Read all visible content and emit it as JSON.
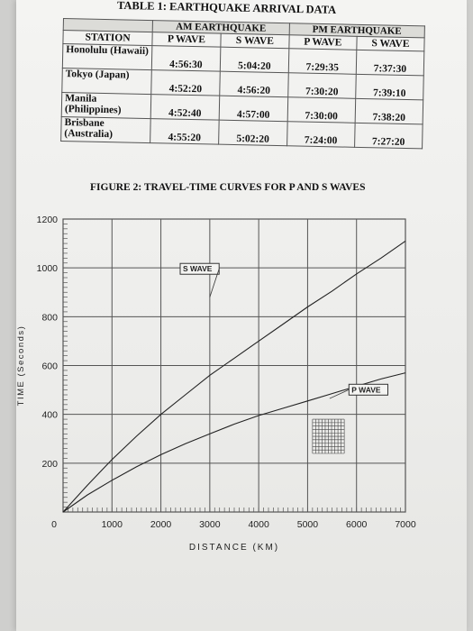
{
  "table": {
    "title": "TABLE 1: EARTHQUAKE ARRIVAL DATA",
    "header_am": "AM EARTHQUAKE",
    "header_pm": "PM EARTHQUAKE",
    "col_station": "STATION",
    "col_p_wave": "P WAVE",
    "col_s_wave": "S WAVE",
    "rows": [
      {
        "station": "Honolulu (Hawaii)",
        "am_p": "4:56:30",
        "am_s": "5:04:20",
        "pm_p": "7:29:35",
        "pm_s": "7:37:30"
      },
      {
        "station": "Tokyo (Japan)",
        "am_p": "4:52:20",
        "am_s": "4:56:20",
        "pm_p": "7:30:20",
        "pm_s": "7:39:10"
      },
      {
        "station": "Manila (Philippines)",
        "am_p": "4:52:40",
        "am_s": "4:57:00",
        "pm_p": "7:30:00",
        "pm_s": "7:38:20"
      },
      {
        "station": "Brisbane (Australia)",
        "am_p": "4:55:20",
        "am_s": "5:02:20",
        "pm_p": "7:24:00",
        "pm_s": "7:27:20"
      }
    ]
  },
  "figure": {
    "title": "FIGURE 2: TRAVEL-TIME CURVES FOR P AND S WAVES"
  },
  "chart_data": {
    "type": "line",
    "xlabel": "DISTANCE (KM)",
    "ylabel": "TIME (Seconds)",
    "xlim": [
      0,
      7000
    ],
    "ylim": [
      0,
      1200
    ],
    "x_ticks": [
      "0",
      "1000",
      "2000",
      "3000",
      "4000",
      "5000",
      "6000",
      "7000"
    ],
    "y_ticks": [
      "200",
      "400",
      "600",
      "800",
      "1000",
      "1200"
    ],
    "grid": true,
    "series": [
      {
        "name": "S WAVE",
        "x": [
          0,
          500,
          1000,
          1500,
          2000,
          2500,
          3000,
          3500,
          4000,
          4500,
          5000,
          5500,
          6000,
          6500,
          7000
        ],
        "y": [
          0,
          110,
          215,
          310,
          400,
          480,
          560,
          630,
          700,
          770,
          840,
          905,
          975,
          1040,
          1110
        ]
      },
      {
        "name": "P WAVE",
        "x": [
          0,
          500,
          1000,
          1500,
          2000,
          2500,
          3000,
          3500,
          4000,
          4500,
          5000,
          5500,
          6000,
          6500,
          7000
        ],
        "y": [
          0,
          70,
          130,
          185,
          235,
          280,
          320,
          360,
          395,
          425,
          455,
          485,
          515,
          545,
          570
        ]
      }
    ]
  },
  "colors": {
    "line": "#222222",
    "grid": "#555555",
    "paper": "#f2f2f0"
  }
}
